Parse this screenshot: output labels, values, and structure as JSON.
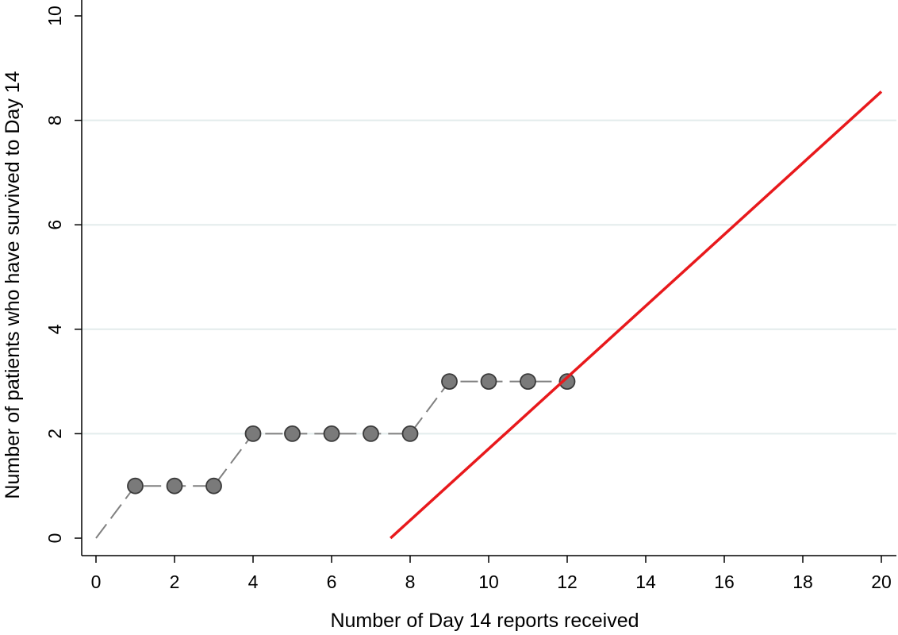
{
  "chart_data": {
    "type": "line",
    "title": "",
    "xlabel": "Number of Day 14 reports received",
    "ylabel": "Number of patients who have survived to Day 14",
    "xlim": [
      0,
      20
    ],
    "ylim": [
      0,
      10
    ],
    "x_ticks": [
      0,
      2,
      4,
      6,
      8,
      10,
      12,
      14,
      16,
      18,
      20
    ],
    "y_ticks": [
      0,
      2,
      4,
      6,
      8,
      10
    ],
    "grid": "horizontal",
    "legend": "none",
    "series": [
      {
        "style": "dashed line with circle markers",
        "color": "#808080",
        "x": [
          0,
          1,
          2,
          3,
          4,
          5,
          6,
          7,
          8,
          9,
          10,
          11,
          12
        ],
        "y": [
          0,
          1,
          1,
          1,
          2,
          2,
          2,
          2,
          2,
          3,
          3,
          3,
          3
        ],
        "marker_from_x": 1
      },
      {
        "style": "solid line",
        "color": "#e8191c",
        "x": [
          7.5,
          20
        ],
        "y": [
          0,
          8.55
        ]
      }
    ]
  }
}
